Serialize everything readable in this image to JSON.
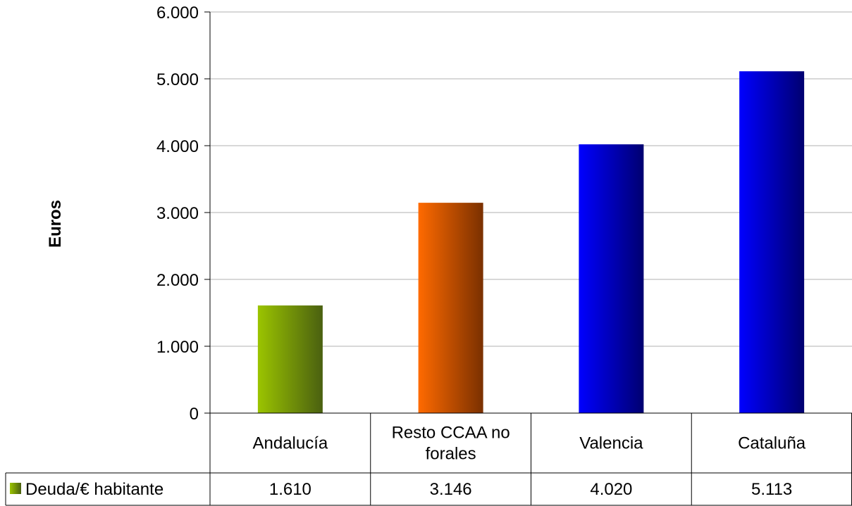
{
  "chart_data": {
    "type": "bar",
    "title": "",
    "xlabel": "",
    "ylabel": "Euros",
    "ylim": [
      0,
      6000
    ],
    "yticks": [
      "0",
      "1.000",
      "2.000",
      "3.000",
      "4.000",
      "5.000",
      "6.000"
    ],
    "grid": true,
    "categories": [
      [
        "Andalucía"
      ],
      [
        "Resto CCAA no",
        "forales"
      ],
      [
        "Valencia"
      ],
      [
        "Cataluña"
      ]
    ],
    "series": [
      {
        "name": "Deuda/€ habitante",
        "values": [
          1610,
          3146,
          4020,
          5113
        ],
        "value_labels": [
          "1.610",
          "3.146",
          "4.020",
          "5.113"
        ]
      }
    ],
    "bar_colors": [
      [
        "#9bc400",
        "#4a6010"
      ],
      [
        "#ff6a00",
        "#7a3000"
      ],
      [
        "#0000ff",
        "#000070"
      ],
      [
        "#0000ff",
        "#000070"
      ]
    ],
    "legend_color": [
      "#9bc400",
      "#4a6010"
    ],
    "legend": "data-table"
  }
}
